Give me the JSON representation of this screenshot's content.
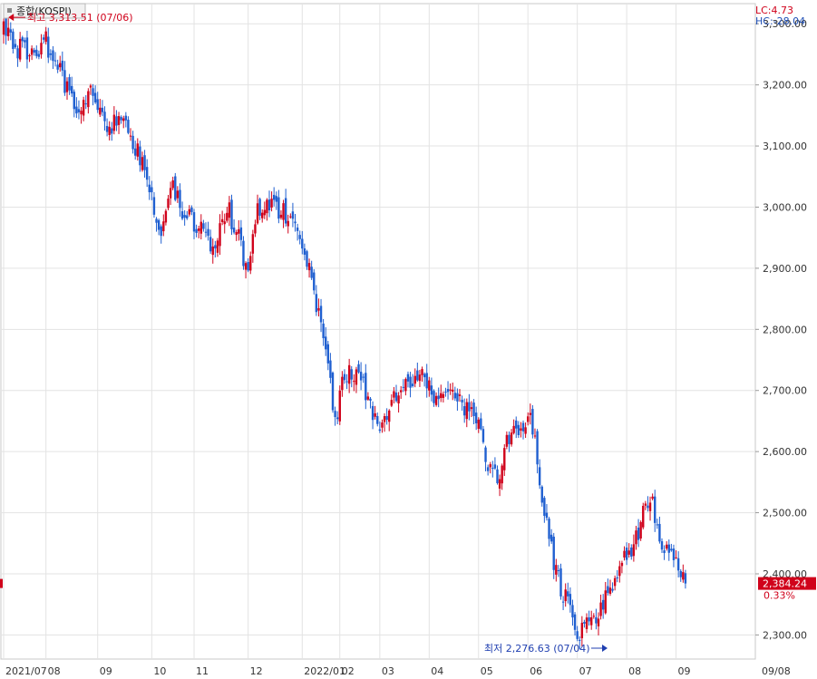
{
  "chart_data": {
    "type": "candlestick",
    "title": "종합(KOSPI)",
    "indicators": {
      "lc": "LC:4.73",
      "hc": "HC:-28.04"
    },
    "y_ticks": [
      "3,300.00",
      "3,200.00",
      "3,100.00",
      "3,000.00",
      "2,900.00",
      "2,800.00",
      "2,700.00",
      "2,600.00",
      "2,500.00",
      "2,400.00",
      "2,300.00"
    ],
    "y_tick_values": [
      3300,
      3200,
      3100,
      3000,
      2900,
      2800,
      2700,
      2600,
      2500,
      2400,
      2300
    ],
    "ylim": [
      2265,
      3330
    ],
    "x_ticks": [
      "2021/07",
      "08",
      "09",
      "10",
      "11",
      "12",
      "2022/01",
      "02",
      "03",
      "04",
      "05",
      "06",
      "07",
      "08",
      "09",
      "09/08"
    ],
    "x_tick_index": [
      0,
      18,
      40,
      63,
      81,
      104,
      127,
      143,
      160,
      181,
      202,
      223,
      244,
      265,
      286,
      307
    ],
    "n_sessions": 308,
    "high_annotation": "최고 3,313.51 (07/06)",
    "low_annotation": "최저 2,276.63 (07/04)",
    "high_value": 3313.51,
    "low_value": 2276.63,
    "high_index": 2,
    "low_index": 245,
    "current_value_label": "2,384.24",
    "current_value": 2384.24,
    "change_label": "0.33%",
    "close_path": [
      [
        0,
        3290
      ],
      [
        6,
        3260
      ],
      [
        12,
        3250
      ],
      [
        18,
        3270
      ],
      [
        22,
        3240
      ],
      [
        28,
        3180
      ],
      [
        33,
        3150
      ],
      [
        38,
        3190
      ],
      [
        43,
        3130
      ],
      [
        48,
        3140
      ],
      [
        53,
        3120
      ],
      [
        59,
        3070
      ],
      [
        63,
        3010
      ],
      [
        67,
        2960
      ],
      [
        72,
        3030
      ],
      [
        77,
        2990
      ],
      [
        81,
        2970
      ],
      [
        86,
        2960
      ],
      [
        90,
        2930
      ],
      [
        95,
        3000
      ],
      [
        100,
        2950
      ],
      [
        104,
        2890
      ],
      [
        108,
        3000
      ],
      [
        113,
        3010
      ],
      [
        118,
        2990
      ],
      [
        123,
        2990
      ],
      [
        127,
        2940
      ],
      [
        131,
        2890
      ],
      [
        134,
        2820
      ],
      [
        138,
        2740
      ],
      [
        141,
        2640
      ],
      [
        143,
        2700
      ],
      [
        147,
        2740
      ],
      [
        151,
        2720
      ],
      [
        155,
        2690
      ],
      [
        159,
        2640
      ],
      [
        163,
        2670
      ],
      [
        168,
        2700
      ],
      [
        173,
        2720
      ],
      [
        178,
        2740
      ],
      [
        183,
        2690
      ],
      [
        188,
        2700
      ],
      [
        193,
        2690
      ],
      [
        198,
        2660
      ],
      [
        202,
        2640
      ],
      [
        206,
        2580
      ],
      [
        210,
        2560
      ],
      [
        214,
        2610
      ],
      [
        218,
        2630
      ],
      [
        223,
        2660
      ],
      [
        226,
        2620
      ],
      [
        229,
        2520
      ],
      [
        232,
        2460
      ],
      [
        235,
        2400
      ],
      [
        239,
        2360
      ],
      [
        242,
        2320
      ],
      [
        245,
        2300
      ],
      [
        248,
        2330
      ],
      [
        252,
        2330
      ],
      [
        256,
        2360
      ],
      [
        260,
        2400
      ],
      [
        265,
        2430
      ],
      [
        269,
        2460
      ],
      [
        272,
        2500
      ],
      [
        276,
        2520
      ],
      [
        279,
        2460
      ],
      [
        282,
        2440
      ],
      [
        285,
        2420
      ],
      [
        288,
        2400
      ],
      [
        290,
        2380
      ]
    ]
  }
}
